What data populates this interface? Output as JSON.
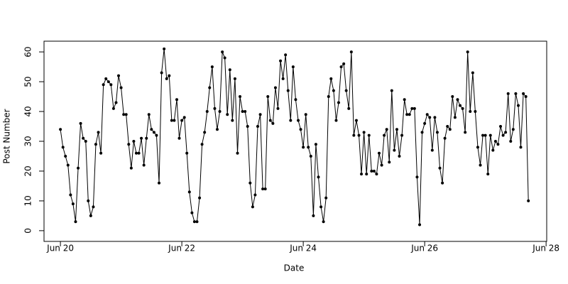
{
  "chart_data": {
    "type": "line",
    "xlabel": "Date",
    "ylabel": "Post Number",
    "color": "#000000",
    "markers": true,
    "x": [
      20,
      20.042,
      20.083,
      20.125,
      20.167,
      20.208,
      20.25,
      20.292,
      20.333,
      20.375,
      20.417,
      20.458,
      20.5,
      20.542,
      20.583,
      20.625,
      20.667,
      20.708,
      20.75,
      20.792,
      20.833,
      20.875,
      20.917,
      20.958,
      21,
      21.042,
      21.083,
      21.125,
      21.167,
      21.208,
      21.25,
      21.292,
      21.333,
      21.375,
      21.417,
      21.458,
      21.5,
      21.542,
      21.583,
      21.625,
      21.667,
      21.708,
      21.75,
      21.792,
      21.833,
      21.875,
      21.917,
      21.958,
      22,
      22.042,
      22.083,
      22.125,
      22.167,
      22.208,
      22.25,
      22.292,
      22.333,
      22.375,
      22.417,
      22.458,
      22.5,
      22.542,
      22.583,
      22.625,
      22.667,
      22.708,
      22.75,
      22.792,
      22.833,
      22.875,
      22.917,
      22.958,
      23,
      23.042,
      23.083,
      23.125,
      23.167,
      23.208,
      23.25,
      23.292,
      23.333,
      23.375,
      23.417,
      23.458,
      23.5,
      23.542,
      23.583,
      23.625,
      23.667,
      23.708,
      23.75,
      23.792,
      23.833,
      23.875,
      23.917,
      23.958,
      24,
      24.042,
      24.083,
      24.125,
      24.167,
      24.208,
      24.25,
      24.292,
      24.333,
      24.375,
      24.417,
      24.458,
      24.5,
      24.542,
      24.583,
      24.625,
      24.667,
      24.708,
      24.75,
      24.792,
      24.833,
      24.875,
      24.917,
      24.958,
      25,
      25.042,
      25.083,
      25.125,
      25.167,
      25.208,
      25.25,
      25.292,
      25.333,
      25.375,
      25.417,
      25.458,
      25.5,
      25.542,
      25.583,
      25.625,
      25.667,
      25.708,
      25.75,
      25.792,
      25.833,
      25.875,
      25.917,
      25.958,
      26,
      26.042,
      26.083,
      26.125,
      26.167,
      26.208,
      26.25,
      26.292,
      26.333,
      26.375,
      26.417,
      26.458,
      26.5,
      26.542,
      26.583,
      26.625,
      26.667,
      26.708,
      26.75,
      26.792,
      26.833,
      26.875,
      26.917,
      26.958,
      27,
      27.042,
      27.083,
      27.125,
      27.167,
      27.208,
      27.25,
      27.292,
      27.333,
      27.375,
      27.417,
      27.458,
      27.5,
      27.542,
      27.583,
      27.625,
      27.667,
      27.708
    ],
    "values": [
      34,
      28,
      25,
      22,
      12,
      9,
      3,
      21,
      36,
      31,
      30,
      10,
      5,
      8,
      29,
      33,
      26,
      49,
      51,
      50,
      49,
      41,
      43,
      52,
      48,
      39,
      39,
      29,
      21,
      30,
      26,
      26,
      31,
      22,
      31,
      39,
      34,
      33,
      32,
      16,
      53,
      61,
      51,
      52,
      37,
      37,
      44,
      31,
      37,
      38,
      26,
      13,
      6,
      3,
      3,
      11,
      29,
      33,
      40,
      48,
      55,
      41,
      34,
      40,
      60,
      58,
      39,
      54,
      37,
      51,
      26,
      45,
      40,
      40,
      35,
      16,
      8,
      12,
      35,
      39,
      14,
      14,
      45,
      37,
      36,
      48,
      41,
      57,
      51,
      59,
      47,
      37,
      55,
      44,
      37,
      34,
      28,
      39,
      28,
      25,
      5,
      29,
      18,
      8,
      3,
      11,
      45,
      51,
      47,
      37,
      43,
      55,
      56,
      47,
      41,
      60,
      32,
      37,
      32,
      19,
      33,
      19,
      32,
      20,
      20,
      19,
      26,
      22,
      32,
      34,
      23,
      47,
      27,
      34,
      25,
      32,
      44,
      39,
      39,
      41,
      41,
      18,
      2,
      33,
      36,
      39,
      38,
      27,
      38,
      33,
      21,
      16,
      31,
      35,
      34,
      45,
      38,
      44,
      42,
      41,
      33,
      60,
      40,
      53,
      40,
      28,
      22,
      32,
      32,
      19,
      32,
      27,
      30,
      29,
      35,
      32,
      33,
      46,
      30,
      34,
      46,
      42,
      28,
      46,
      45,
      10
    ],
    "xlim": [
      19.73,
      28.01
    ],
    "xticks": [
      {
        "value": 20,
        "label": "Jun 20"
      },
      {
        "value": 22,
        "label": "Jun 22"
      },
      {
        "value": 24,
        "label": "Jun 24"
      },
      {
        "value": 26,
        "label": "Jun 26"
      },
      {
        "value": 28,
        "label": "Jun 28"
      }
    ],
    "ylim": [
      -3.6,
      63.6
    ],
    "yticks": [
      0,
      10,
      20,
      30,
      40,
      50,
      60
    ]
  }
}
